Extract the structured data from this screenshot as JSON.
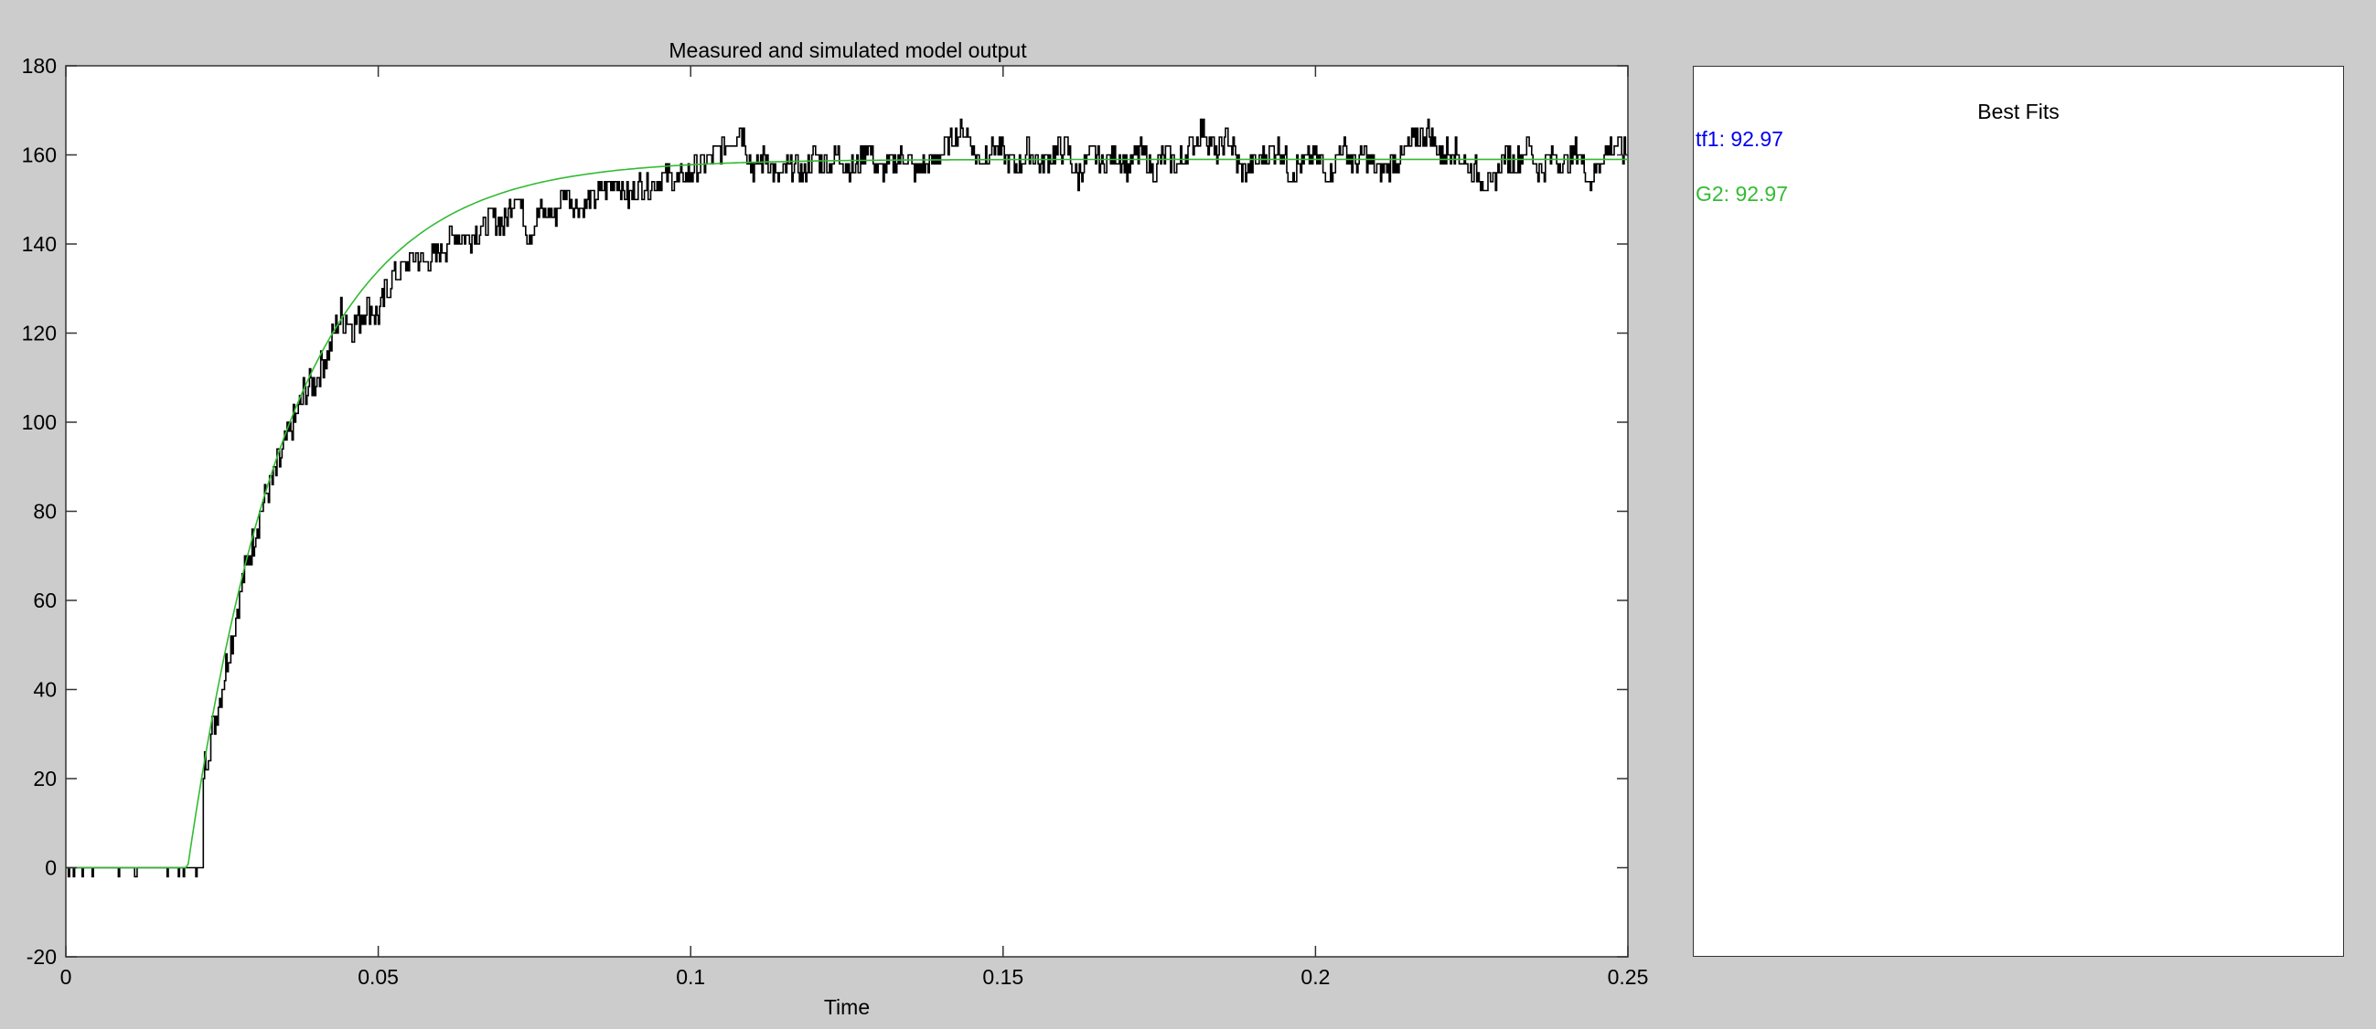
{
  "chart_data": {
    "type": "line",
    "title": "Measured and simulated model output",
    "xlabel": "Time",
    "ylabel": "",
    "xlim": [
      0,
      0.25
    ],
    "ylim": [
      -20,
      180
    ],
    "x_ticks": [
      0,
      0.05,
      0.1,
      0.15,
      0.2,
      0.25
    ],
    "x_tick_labels": [
      "0",
      "0.05",
      "0.1",
      "0.15",
      "0.2",
      "0.25"
    ],
    "y_ticks": [
      -20,
      0,
      20,
      40,
      60,
      80,
      100,
      120,
      140,
      160,
      180
    ],
    "y_tick_labels": [
      "-20",
      "0",
      "20",
      "40",
      "60",
      "80",
      "100",
      "120",
      "140",
      "160",
      "180"
    ],
    "grid": false,
    "series": [
      {
        "color": "#000000",
        "x": [
          0,
          0.002,
          0.004,
          0.006,
          0.008,
          0.01,
          0.012,
          0.014,
          0.016,
          0.018,
          0.02,
          0.022,
          0.024,
          0.026,
          0.028,
          0.03,
          0.032,
          0.034,
          0.036,
          0.038,
          0.04,
          0.042,
          0.044,
          0.046,
          0.048,
          0.05,
          0.052,
          0.054,
          0.056,
          0.058,
          0.06,
          0.062,
          0.064,
          0.066,
          0.068,
          0.07,
          0.072,
          0.074,
          0.076,
          0.078,
          0.08,
          0.082,
          0.084,
          0.086,
          0.088,
          0.09,
          0.092,
          0.094,
          0.096,
          0.098,
          0.1,
          0.102,
          0.104,
          0.106,
          0.108,
          0.11,
          0.112,
          0.114,
          0.116,
          0.118,
          0.12,
          0.122,
          0.124,
          0.126,
          0.128,
          0.13,
          0.132,
          0.134,
          0.136,
          0.138,
          0.14,
          0.142,
          0.144,
          0.146,
          0.148,
          0.15,
          0.152,
          0.154,
          0.156,
          0.158,
          0.16,
          0.162,
          0.164,
          0.166,
          0.168,
          0.17,
          0.172,
          0.174,
          0.176,
          0.178,
          0.18,
          0.182,
          0.184,
          0.186,
          0.188,
          0.19,
          0.192,
          0.194,
          0.196,
          0.198,
          0.2,
          0.202,
          0.204,
          0.206,
          0.208,
          0.21,
          0.212,
          0.214,
          0.216,
          0.218,
          0.22,
          0.222,
          0.224,
          0.226,
          0.228,
          0.23,
          0.232,
          0.234,
          0.236,
          0.238,
          0.24,
          0.242,
          0.244,
          0.246,
          0.248,
          0.25
        ],
        "y": [
          0,
          -2,
          0,
          0,
          -2,
          0,
          0,
          -2,
          0,
          0,
          0,
          22,
          34,
          48,
          62,
          74,
          84,
          90,
          98,
          106,
          110,
          116,
          124,
          122,
          126,
          124,
          132,
          135,
          137,
          136,
          138,
          142,
          141,
          143,
          146,
          144,
          152,
          142,
          148,
          146,
          152,
          148,
          150,
          152,
          154,
          150,
          154,
          153,
          156,
          154,
          156,
          158,
          160,
          163,
          166,
          156,
          160,
          154,
          158,
          156,
          160,
          158,
          160,
          156,
          162,
          157,
          158,
          160,
          156,
          158,
          160,
          164,
          166,
          158,
          162,
          160,
          157,
          161,
          158,
          160,
          162,
          155,
          160,
          158,
          160,
          157,
          161,
          156,
          160,
          158,
          162,
          166,
          160,
          164,
          156,
          158,
          160,
          162,
          156,
          158,
          160,
          155,
          162,
          158,
          160,
          156,
          158,
          160,
          164,
          166,
          160,
          162,
          158,
          156,
          152,
          160,
          158,
          162,
          156,
          160,
          158,
          161,
          154,
          160,
          162,
          160
        ],
        "y_spread": [
          0,
          0,
          0,
          0,
          0,
          0,
          0,
          0,
          0,
          0,
          0,
          4,
          4,
          4,
          4,
          4,
          4,
          4,
          4,
          4,
          4,
          4,
          4,
          4,
          4,
          4,
          3,
          3,
          3,
          3,
          3,
          3,
          3,
          3,
          3,
          3,
          3,
          3,
          3,
          3,
          3,
          3,
          3,
          3,
          3,
          3,
          3,
          3,
          3,
          3,
          3,
          3,
          3,
          3,
          3,
          3,
          3,
          3,
          3,
          3,
          3,
          3,
          3,
          3,
          3,
          3,
          3,
          3,
          3,
          3,
          3,
          3,
          3,
          3,
          3,
          3,
          3,
          3,
          3,
          3,
          3,
          3,
          3,
          3,
          3,
          3,
          3,
          3,
          3,
          3,
          3,
          3,
          3,
          3,
          3,
          3,
          3,
          3,
          3,
          3,
          3,
          3,
          3,
          3,
          3,
          3,
          3,
          3,
          3,
          3,
          3,
          3,
          3,
          3,
          3,
          3,
          3,
          3,
          3,
          3,
          3,
          3,
          3,
          3,
          3,
          3
        ]
      },
      {
        "color": "#33bb33",
        "model": "first_order_step",
        "step_time": 0.0195,
        "final_value": 159,
        "time_constant": 0.0165,
        "x_start": 0,
        "x_end": 0.25
      }
    ]
  },
  "fits_panel": {
    "title": "Best Fits",
    "entries": [
      {
        "label": "tf1: 92.97",
        "color": "#0000ee"
      },
      {
        "label": "G2: 92.97",
        "color": "#33bb33"
      }
    ]
  }
}
